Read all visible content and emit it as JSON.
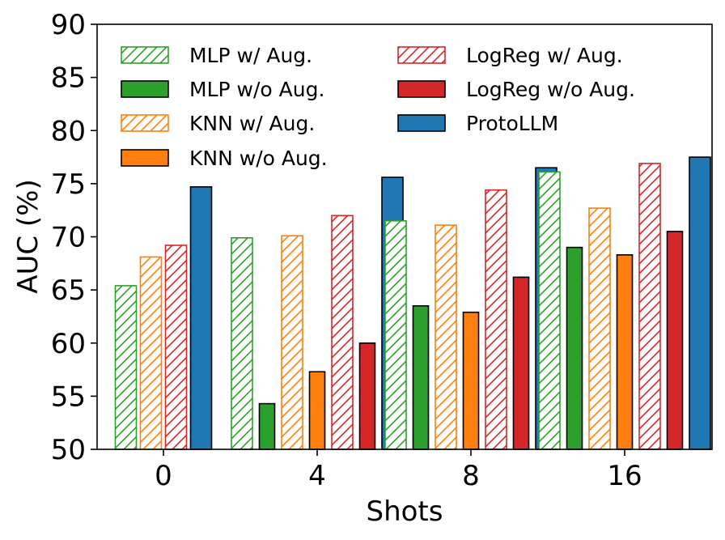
{
  "chart_data": {
    "type": "bar",
    "title": "",
    "xlabel": "Shots",
    "ylabel": "AUC (%)",
    "ylim": [
      50,
      90
    ],
    "yticks": [
      "50",
      "55",
      "60",
      "65",
      "70",
      "75",
      "80",
      "85",
      "90"
    ],
    "categories": [
      "0",
      "4",
      "8",
      "16"
    ],
    "series": [
      {
        "name": "MLP w/ Aug.",
        "color": "#2ca02c",
        "style": "hatched",
        "values": [
          65.4,
          69.9,
          71.5,
          76.1
        ]
      },
      {
        "name": "MLP w/o Aug.",
        "color": "#2ca02c",
        "style": "solid",
        "values": [
          null,
          54.3,
          63.5,
          69.0
        ]
      },
      {
        "name": "KNN w/ Aug.",
        "color": "#ff7f0e",
        "style": "hatched",
        "values": [
          68.1,
          70.1,
          71.1,
          72.7
        ]
      },
      {
        "name": "KNN w/o Aug.",
        "color": "#ff7f0e",
        "style": "solid",
        "values": [
          null,
          57.3,
          62.9,
          68.3
        ]
      },
      {
        "name": "LogReg w/ Aug.",
        "color": "#d62728",
        "style": "hatched",
        "values": [
          69.2,
          72.0,
          74.4,
          76.9
        ]
      },
      {
        "name": "LogReg w/o Aug.",
        "color": "#d62728",
        "style": "solid",
        "values": [
          null,
          60.0,
          66.2,
          70.5
        ]
      },
      {
        "name": "ProtoLLM",
        "color": "#1f77b4",
        "style": "solid",
        "values": [
          74.7,
          75.6,
          76.5,
          77.5
        ]
      }
    ],
    "legend_position": "top-left"
  }
}
